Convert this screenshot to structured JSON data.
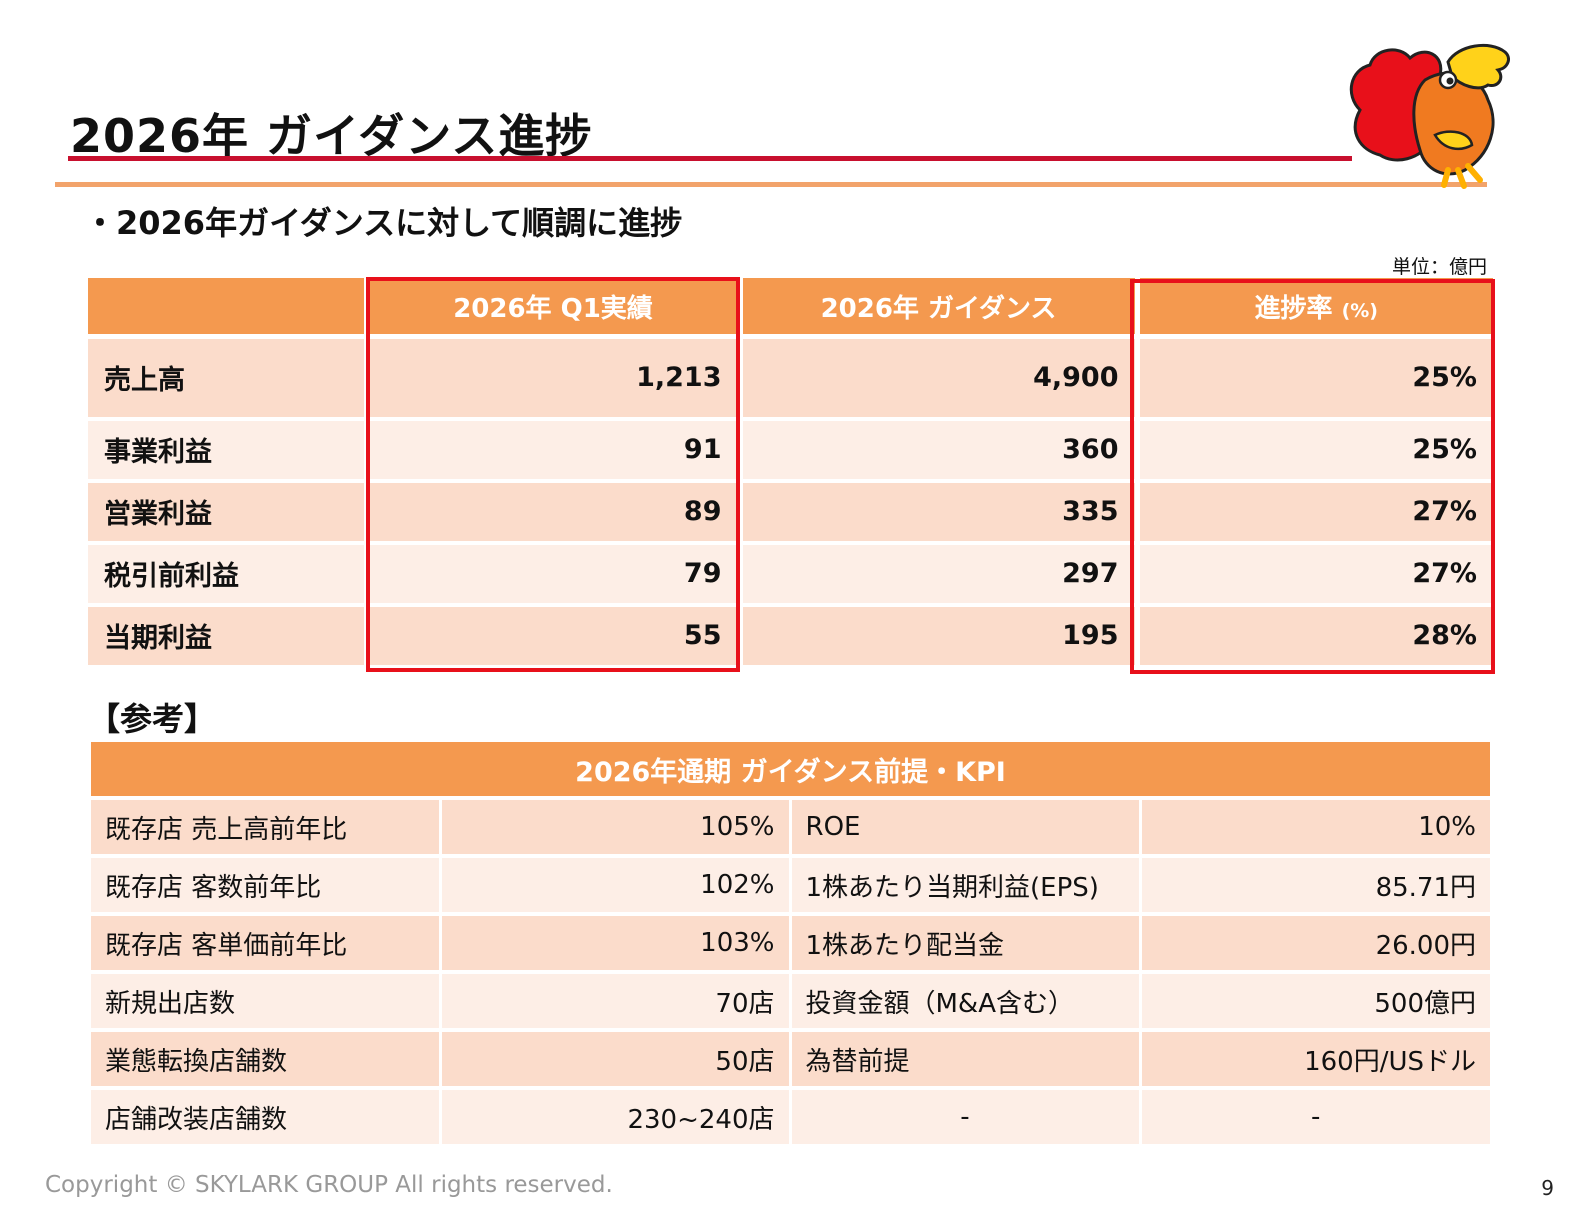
{
  "title": "2026年 ガイダンス進捗",
  "subtitle": "・2026年ガイダンスに対して順調に進捗",
  "unit": "単位：億円",
  "main_table": {
    "headers": [
      "",
      "2026年 Q1実績",
      "2026年 ガイダンス",
      "進捗率",
      "(%)"
    ],
    "rows": [
      {
        "label": "売上高",
        "q1": "1,213",
        "guidance": "4,900",
        "progress": "25%"
      },
      {
        "label": "事業利益",
        "q1": "91",
        "guidance": "360",
        "progress": "25%"
      },
      {
        "label": "営業利益",
        "q1": "89",
        "guidance": "335",
        "progress": "27%"
      },
      {
        "label": "税引前利益",
        "q1": "79",
        "guidance": "297",
        "progress": "27%"
      },
      {
        "label": "当期利益",
        "q1": "55",
        "guidance": "195",
        "progress": "28%"
      }
    ]
  },
  "reference_label": "【参考】",
  "kpi_table": {
    "header": "2026年通期 ガイダンス前提・KPI",
    "rows": [
      {
        "l1": "既存店 売上高前年比",
        "v1": "105%",
        "l2": "ROE",
        "v2": "10%"
      },
      {
        "l1": "既存店 客数前年比",
        "v1": "102%",
        "l2": "1株あたり当期利益(EPS)",
        "v2": "85.71円"
      },
      {
        "l1": "既存店 客単価前年比",
        "v1": "103%",
        "l2": "1株あたり配当金",
        "v2": "26.00円"
      },
      {
        "l1": "新規出店数",
        "v1": "70店",
        "l2": "投資金額（M&A含む）",
        "v2": "500億円"
      },
      {
        "l1": "業態転換店舗数",
        "v1": "50店",
        "l2": "為替前提",
        "v2": "160円/USドル"
      },
      {
        "l1": "店舗改装店舗数",
        "v1": "230~240店",
        "l2": "-",
        "v2": "-"
      }
    ]
  },
  "footer": {
    "copyright": "Copyright © SKYLARK GROUP All rights reserved.",
    "page": "9"
  },
  "colors": {
    "accent_orange": "#f4994f",
    "highlight_red": "#e8101a",
    "rule_red": "#c8102e"
  },
  "icons": {
    "mascot": "rooster-mascot-icon"
  }
}
